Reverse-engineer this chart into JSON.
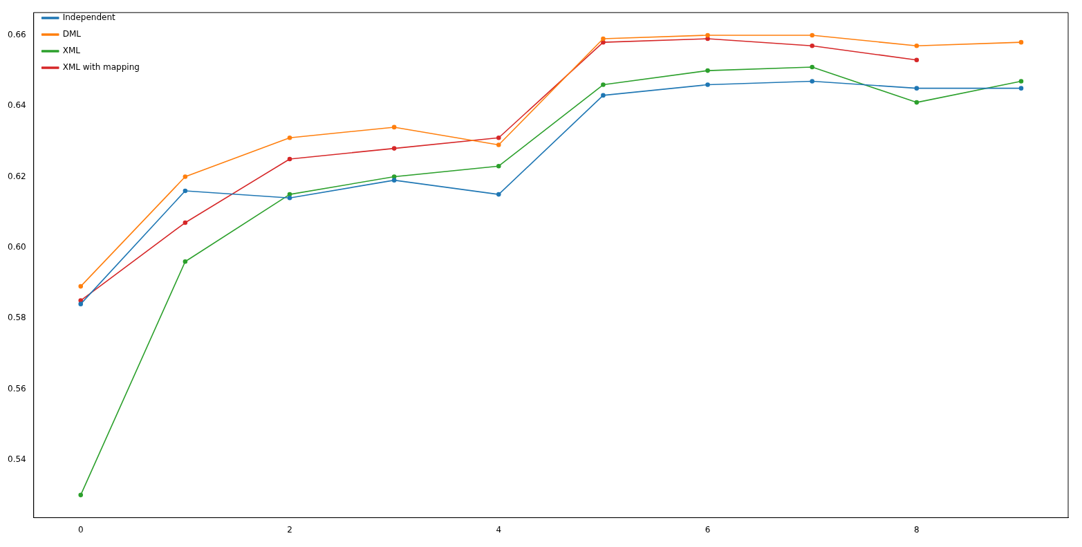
{
  "chart_data": {
    "type": "line",
    "x": [
      0,
      1,
      2,
      3,
      4,
      5,
      6,
      7,
      8,
      9
    ],
    "xlim": [
      -0.45,
      9.45
    ],
    "xticks": [
      0,
      2,
      4,
      6,
      8
    ],
    "ylim": [
      0.5236,
      0.6664
    ],
    "yticks": [
      {
        "value": 0.54,
        "label": "0.54"
      },
      {
        "value": 0.56,
        "label": "0.56"
      },
      {
        "value": 0.58,
        "label": "0.58"
      },
      {
        "value": 0.6,
        "label": "0.60"
      },
      {
        "value": 0.62,
        "label": "0.62"
      },
      {
        "value": 0.64,
        "label": "0.64"
      },
      {
        "value": 0.66,
        "label": "0.66"
      }
    ],
    "grid": false,
    "legend": "top left",
    "marker": "circle",
    "line_style": "solid",
    "series": [
      {
        "name": "Independent",
        "color": "#1f77b4",
        "values": [
          0.584,
          0.616,
          0.614,
          0.619,
          0.615,
          0.643,
          0.646,
          0.647,
          0.645,
          0.645
        ]
      },
      {
        "name": "DML",
        "color": "#ff7f0e",
        "values": [
          0.589,
          0.62,
          0.631,
          0.634,
          0.629,
          0.659,
          0.66,
          0.66,
          0.657,
          0.658
        ]
      },
      {
        "name": "XML",
        "color": "#2ca02c",
        "values": [
          0.53,
          0.596,
          0.615,
          0.62,
          0.623,
          0.646,
          0.65,
          0.651,
          0.641,
          0.647
        ]
      },
      {
        "name": "XML with mapping",
        "color": "#d62728",
        "values": [
          0.585,
          0.607,
          0.625,
          0.628,
          0.631,
          0.658,
          0.659,
          0.657,
          0.653,
          null
        ]
      }
    ]
  }
}
